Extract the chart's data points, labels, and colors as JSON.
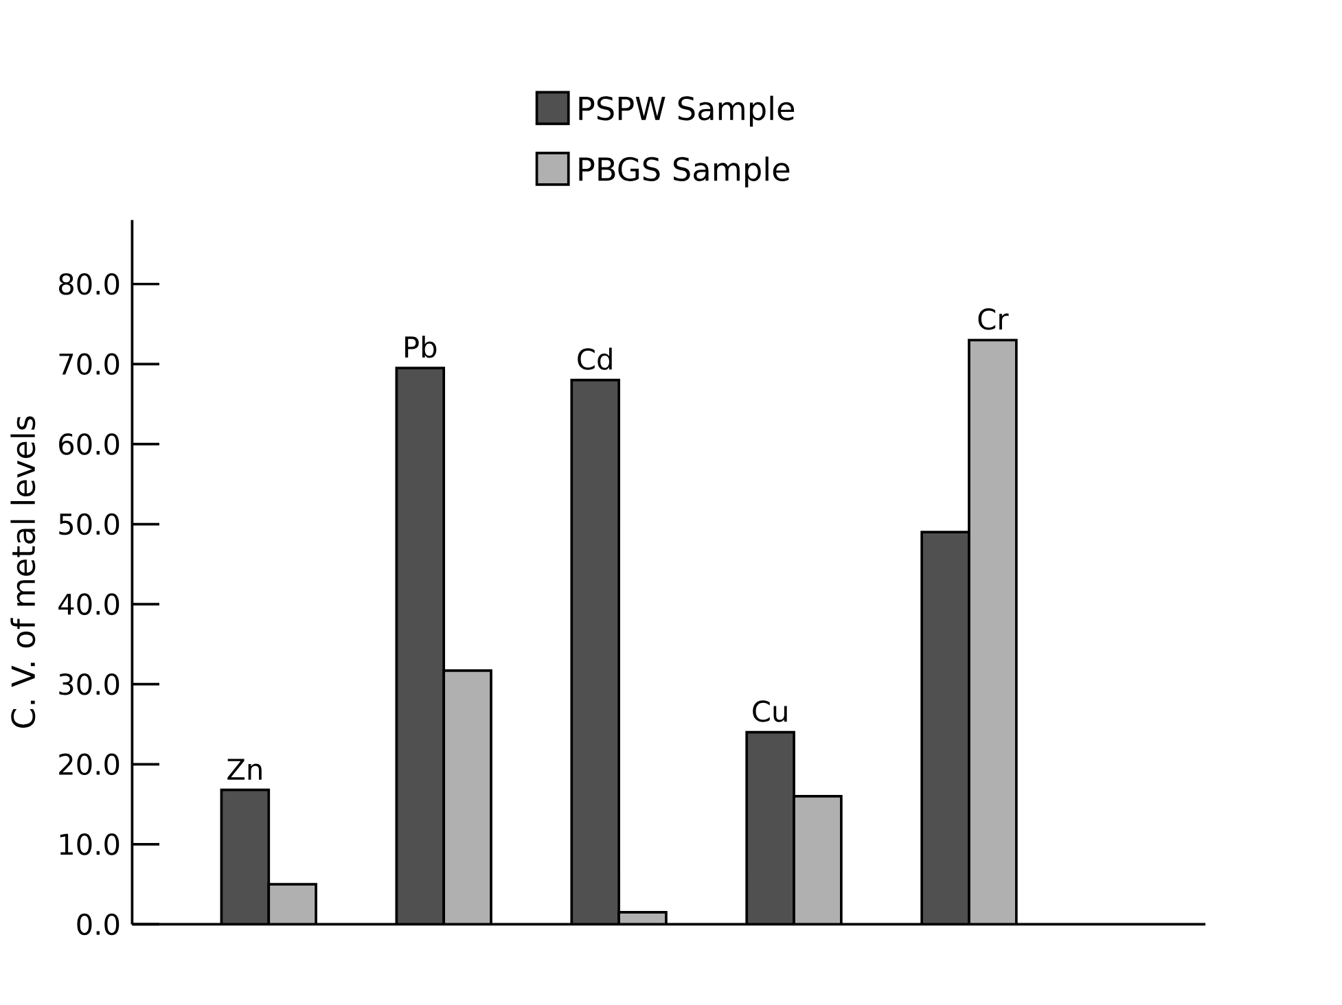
{
  "chart_data": {
    "type": "bar",
    "ylabel": "C. V. of metal levels",
    "categories": [
      "Zn",
      "Pb",
      "Cd",
      "Cu",
      "Cr"
    ],
    "series": [
      {
        "name": "PSPW Sample",
        "color": "#505050",
        "values": [
          16.8,
          69.5,
          68,
          24,
          49
        ]
      },
      {
        "name": "PBGS Sample",
        "color": "#b0b0b0",
        "values": [
          5,
          31.7,
          1.5,
          16,
          73
        ]
      }
    ],
    "ylim": [
      0,
      88
    ],
    "yticks": [
      {
        "value": 0,
        "label": "0.0"
      },
      {
        "value": 10,
        "label": "10.0"
      },
      {
        "value": 20,
        "label": "20.0"
      },
      {
        "value": 30,
        "label": "30.0"
      },
      {
        "value": 40,
        "label": "40.0"
      },
      {
        "value": 50,
        "label": "50.0"
      },
      {
        "value": 60,
        "label": "60.0"
      },
      {
        "value": 70,
        "label": "70.0"
      },
      {
        "value": 80,
        "label": "80.0"
      }
    ],
    "grid": false,
    "legend": "top",
    "tick_labels": "y"
  }
}
